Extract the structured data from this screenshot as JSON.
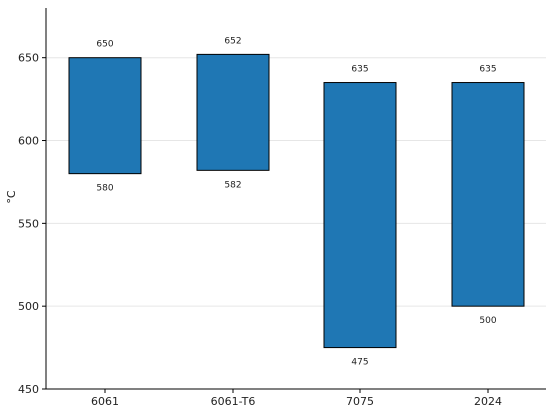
{
  "chart_data": {
    "type": "bar",
    "subtype": "floating-range",
    "title": "",
    "xlabel": "",
    "ylabel": "°C",
    "ylim": [
      450,
      680
    ],
    "yticks": [
      450,
      500,
      550,
      600,
      650
    ],
    "grid": true,
    "categories": [
      "6061",
      "6061-T6",
      "7075",
      "2024"
    ],
    "series": [
      {
        "low": [
          580,
          582,
          475,
          500
        ],
        "high": [
          650,
          652,
          635,
          635
        ]
      }
    ],
    "colors": {
      "bar": "#1f77b4",
      "edge": "#000000",
      "grid": "#e6e6e6",
      "axis": "#000000"
    }
  }
}
